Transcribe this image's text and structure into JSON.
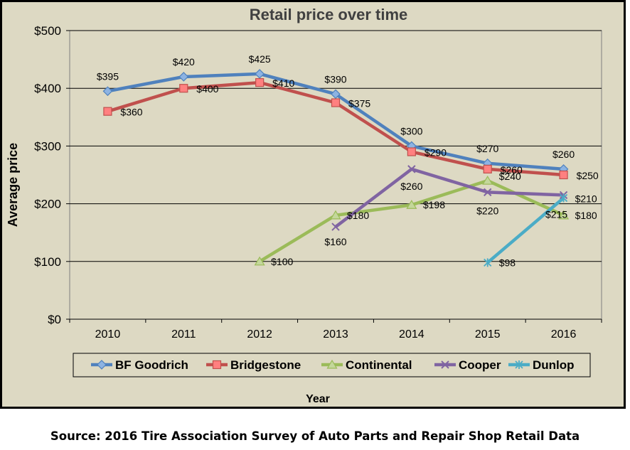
{
  "source_note": "Source: 2016 Tire Association Survey of Auto Parts and Repair Shop Retail Data",
  "chart_data": {
    "type": "line",
    "title": "Retail price over time",
    "xlabel": "Year",
    "ylabel": "Average price",
    "categories": [
      "2010",
      "2011",
      "2012",
      "2013",
      "2014",
      "2015",
      "2016"
    ],
    "ylim": [
      0,
      500
    ],
    "yticks": [
      0,
      100,
      200,
      300,
      400,
      500
    ],
    "ytick_labels": [
      "$0",
      "$100",
      "$200",
      "$300",
      "$400",
      "$500"
    ],
    "grid": true,
    "legend_position": "bottom",
    "background_color": "#ddd9c3",
    "series": [
      {
        "name": "BF Goodrich",
        "color": "#4f81bd",
        "marker": "diamond",
        "values": [
          395,
          420,
          425,
          390,
          300,
          270,
          260
        ],
        "labels": [
          "$395",
          "$420",
          "$425",
          "$390",
          "$300",
          "$270",
          "$260"
        ]
      },
      {
        "name": "Bridgestone",
        "color": "#c0504d",
        "marker": "square",
        "values": [
          360,
          400,
          410,
          375,
          290,
          260,
          250
        ],
        "labels": [
          "$360",
          "$400",
          "$410",
          "$375",
          "$290",
          "$260",
          "$250"
        ]
      },
      {
        "name": "Continental",
        "color": "#9bbb59",
        "marker": "triangle",
        "values": [
          null,
          null,
          100,
          180,
          198,
          240,
          180
        ],
        "labels": [
          null,
          null,
          "$100",
          "$180",
          "$198",
          "$240",
          "$180"
        ]
      },
      {
        "name": "Cooper",
        "color": "#8064a2",
        "marker": "x",
        "values": [
          null,
          null,
          null,
          160,
          260,
          220,
          215
        ],
        "labels": [
          null,
          null,
          null,
          "$160",
          "$260",
          "$220",
          "$215"
        ]
      },
      {
        "name": "Dunlop",
        "color": "#4bacc6",
        "marker": "star",
        "values": [
          null,
          null,
          null,
          null,
          null,
          98,
          210
        ],
        "labels": [
          null,
          null,
          null,
          null,
          null,
          "$98",
          "$210"
        ]
      }
    ]
  }
}
